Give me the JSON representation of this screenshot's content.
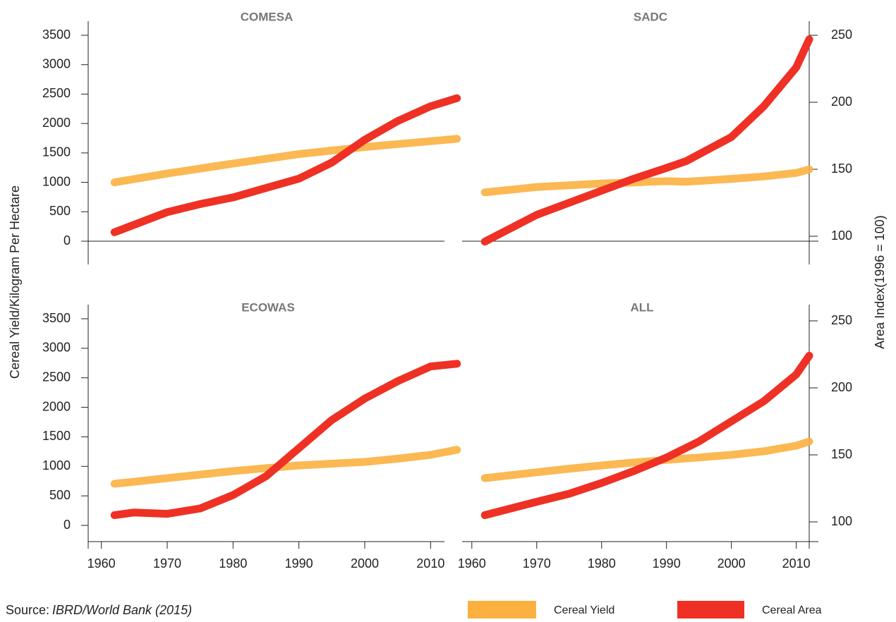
{
  "y_label": "Cereal Yield/Kilogram Per Hectare",
  "y2_label": "Area Index(1996 = 100)",
  "source_label": "Source:",
  "source": "IBRD/World Bank (2015)",
  "chart_data": [
    {
      "type": "line",
      "title": "COMESA",
      "xlim": [
        1958,
        2015
      ],
      "x": [
        1962,
        1970,
        1975,
        1980,
        1985,
        1990,
        1995,
        2000,
        2005,
        2010,
        2014
      ],
      "ylim": [
        0,
        3500
      ],
      "yticks": [
        0,
        500,
        1000,
        1500,
        2000,
        2500,
        3000,
        3500
      ],
      "series": [
        {
          "name": "Cereal Yield",
          "color": "#fbb040",
          "values": [
            1000,
            1150,
            1235,
            1320,
            1400,
            1480,
            1540,
            1600,
            1650,
            1700,
            1740
          ]
        },
        {
          "name": "Cereal Area",
          "color": "#ee3124",
          "axis": "y2",
          "values": [
            103,
            118,
            124,
            129,
            136,
            143,
            155,
            172,
            186,
            197,
            203
          ]
        }
      ]
    },
    {
      "type": "line",
      "title": "SADC",
      "xlim": [
        1958.5,
        2012
      ],
      "x": [
        1962,
        1970,
        1975,
        1980,
        1985,
        1990,
        1993,
        2000,
        2005,
        2010,
        2012
      ],
      "y2lim": [
        100,
        250
      ],
      "y2ticks": [
        100,
        150,
        200,
        250
      ],
      "series": [
        {
          "name": "Cereal Yield",
          "color": "#fbb040",
          "values": [
            830,
            920,
            950,
            980,
            1000,
            1020,
            1010,
            1060,
            1100,
            1160,
            1220
          ]
        },
        {
          "name": "Cereal Area",
          "color": "#ee3124",
          "axis": "y2",
          "values": [
            96,
            116,
            125,
            134,
            143,
            151,
            156,
            174,
            197,
            226,
            247
          ]
        }
      ]
    },
    {
      "type": "line",
      "title": "ECOWAS",
      "xlim": [
        1958,
        2015
      ],
      "xticks": [
        1960,
        1970,
        1980,
        1990,
        2000,
        2010
      ],
      "x": [
        1962,
        1965,
        1970,
        1975,
        1980,
        1985,
        1990,
        1995,
        2000,
        2005,
        2010,
        2014
      ],
      "ylim": [
        0,
        3500
      ],
      "yticks": [
        0,
        500,
        1000,
        1500,
        2000,
        2500,
        3000,
        3500
      ],
      "series": [
        {
          "name": "Cereal Yield",
          "color": "#fbb040",
          "values": [
            705,
            740,
            800,
            860,
            920,
            970,
            1015,
            1045,
            1075,
            1130,
            1195,
            1280
          ]
        },
        {
          "name": "Cereal Area",
          "color": "#ee3124",
          "axis": "y2",
          "values": [
            105,
            107,
            106,
            110,
            120,
            134,
            155,
            176,
            192,
            205,
            216,
            218
          ]
        }
      ]
    },
    {
      "type": "line",
      "title": "ALL",
      "xlim": [
        1958.5,
        2012
      ],
      "xticks": [
        1960,
        1970,
        1980,
        1990,
        2000,
        2010
      ],
      "x": [
        1962,
        1970,
        1975,
        1980,
        1985,
        1990,
        1995,
        2000,
        2005,
        2010,
        2012
      ],
      "y2lim": [
        100,
        250
      ],
      "y2ticks": [
        100,
        150,
        200,
        250
      ],
      "series": [
        {
          "name": "Cereal Yield",
          "color": "#fbb040",
          "values": [
            800,
            900,
            960,
            1015,
            1065,
            1110,
            1150,
            1195,
            1255,
            1350,
            1420
          ]
        },
        {
          "name": "Cereal Area",
          "color": "#ee3124",
          "axis": "y2",
          "values": [
            105,
            115,
            121,
            129,
            138,
            148,
            160,
            175,
            190,
            210,
            224
          ]
        }
      ]
    }
  ]
}
